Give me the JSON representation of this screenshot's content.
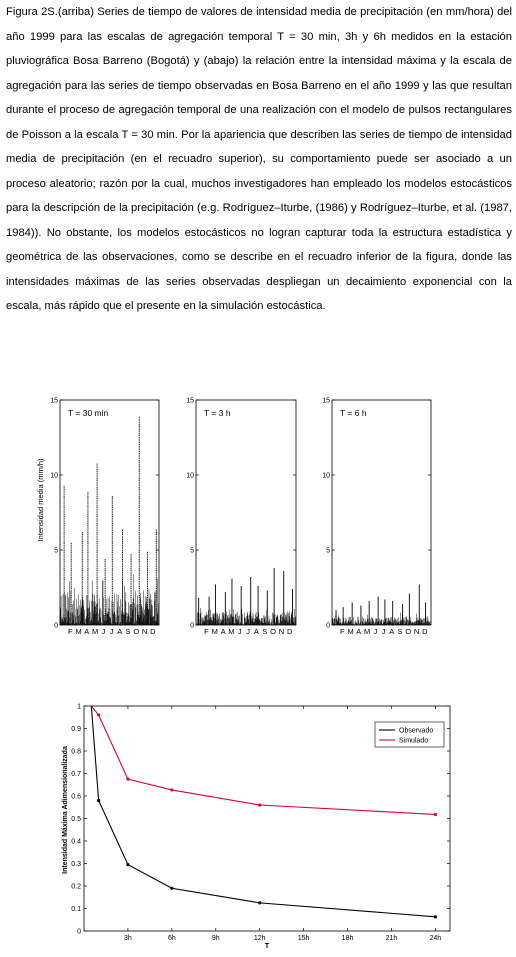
{
  "caption": "Figura 2S.(arriba) Series de tiempo de valores de intensidad media de precipitación (en mm/hora) del año 1999 para las escalas de agregación temporal T = 30 min, 3h y 6h medidos en la estación pluviográfica Bosa Barreno (Bogotá) y (abajo) la relación entre la intensidad máxima y la escala de agregación para las series de tiempo observadas en Bosa Barreno en el año 1999 y las que resultan durante el proceso de agregación temporal de una realización con el modelo de pulsos rectangulares de Poisson a la escala T = 30 min. Por la apariencia que describen las series de tiempo de intensidad media de precipitación (en el recuadro superior), su comportamiento puede ser asociado a un proceso aleatorio; razón por la cual, muchos investigadores han empleado los modelos estocásticos para la descripción de la precipitación (e.g. Rodríguez–Iturbe, (1986) y Rodríguez–Iturbe, et al. (1987, 1984)). No obstante, los modelos estocásticos no logran capturar toda la estructura estadística y geométrica de las observaciones, como se describe en el recuadro inferior de la figura, donde las intensidades máximas de las series observadas despliegan un decaimiento exponencial con la escala, más rápido que el presente en la simulación estocástica.",
  "chart_data": [
    {
      "type": "bar",
      "panel_label": "T = 30 min",
      "ylabel": "Intensidad media (mm/h)",
      "ylim": [
        0,
        15
      ],
      "yticks": [
        0,
        5,
        10,
        15
      ],
      "month_labels": [
        "F",
        "M",
        "A",
        "M",
        "J",
        "J",
        "A",
        "S",
        "O",
        "N",
        "D"
      ],
      "peak_values": [
        {
          "month": "Jan",
          "value": 9.3
        },
        {
          "month": "Feb",
          "value": 5.5
        },
        {
          "month": "Mar",
          "value": 6.2
        },
        {
          "month": "Apr",
          "value": 8.9
        },
        {
          "month": "May",
          "value": 10.8
        },
        {
          "month": "Jun",
          "value": 4.4
        },
        {
          "month": "Jul",
          "value": 8.6
        },
        {
          "month": "Aug",
          "value": 6.4
        },
        {
          "month": "Sep",
          "value": 4.8
        },
        {
          "month": "Oct",
          "value": 13.9
        },
        {
          "month": "Nov",
          "value": 4.9
        },
        {
          "month": "Dec",
          "value": 6.4
        }
      ]
    },
    {
      "type": "bar",
      "panel_label": "T = 3 h",
      "ylim": [
        0,
        15
      ],
      "yticks": [
        0,
        5,
        10,
        15
      ],
      "month_labels": [
        "F",
        "M",
        "A",
        "M",
        "J",
        "J",
        "A",
        "S",
        "O",
        "N",
        "D"
      ],
      "peak_values": [
        {
          "month": "Jan",
          "value": 1.8
        },
        {
          "month": "Feb",
          "value": 1.9
        },
        {
          "month": "Mar",
          "value": 2.7
        },
        {
          "month": "Apr",
          "value": 2.2
        },
        {
          "month": "May",
          "value": 3.1
        },
        {
          "month": "Jun",
          "value": 2.6
        },
        {
          "month": "Jul",
          "value": 3.2
        },
        {
          "month": "Aug",
          "value": 2.6
        },
        {
          "month": "Sep",
          "value": 2.3
        },
        {
          "month": "Oct",
          "value": 3.8
        },
        {
          "month": "Nov",
          "value": 3.6
        },
        {
          "month": "Dec",
          "value": 2.4
        }
      ]
    },
    {
      "type": "bar",
      "panel_label": "T = 6 h",
      "ylim": [
        0,
        15
      ],
      "yticks": [
        0,
        5,
        10,
        15
      ],
      "month_labels": [
        "F",
        "M",
        "A",
        "M",
        "J",
        "J",
        "A",
        "S",
        "O",
        "N",
        "D"
      ],
      "peak_values": [
        {
          "month": "Jan",
          "value": 1.0
        },
        {
          "month": "Feb",
          "value": 1.2
        },
        {
          "month": "Mar",
          "value": 1.5
        },
        {
          "month": "Apr",
          "value": 1.3
        },
        {
          "month": "May",
          "value": 1.6
        },
        {
          "month": "Jun",
          "value": 1.9
        },
        {
          "month": "Jul",
          "value": 1.7
        },
        {
          "month": "Aug",
          "value": 1.6
        },
        {
          "month": "Sep",
          "value": 1.4
        },
        {
          "month": "Oct",
          "value": 2.1
        },
        {
          "month": "Nov",
          "value": 2.7
        },
        {
          "month": "Dec",
          "value": 1.5
        }
      ]
    },
    {
      "type": "line",
      "xlabel": "T",
      "ylabel": "Intensidad Máxima Adimensionalizada",
      "xlim": [
        0,
        25
      ],
      "ylim": [
        0,
        1
      ],
      "xtick_values": [
        3,
        6,
        9,
        12,
        15,
        18,
        21,
        24
      ],
      "xtick_labels": [
        "3h",
        "6h",
        "9h",
        "12h",
        "15h",
        "18h",
        "21h",
        "24h"
      ],
      "yticks": [
        "0",
        "0.1",
        "0.2",
        "0.3",
        "0.4",
        "0.5",
        "0.6",
        "0.7",
        "0.8",
        "0.9",
        "1"
      ],
      "grid": false,
      "legend": "top-right",
      "x": [
        0.5,
        1,
        3,
        6,
        12,
        24
      ],
      "series": [
        {
          "name": "Observado",
          "color": "#000000",
          "values": [
            1.0,
            0.58,
            0.295,
            0.19,
            0.125,
            0.063
          ]
        },
        {
          "name": "Simulado",
          "color": "#e0003a",
          "values": [
            1.0,
            0.96,
            0.675,
            0.627,
            0.56,
            0.518
          ]
        }
      ]
    }
  ]
}
